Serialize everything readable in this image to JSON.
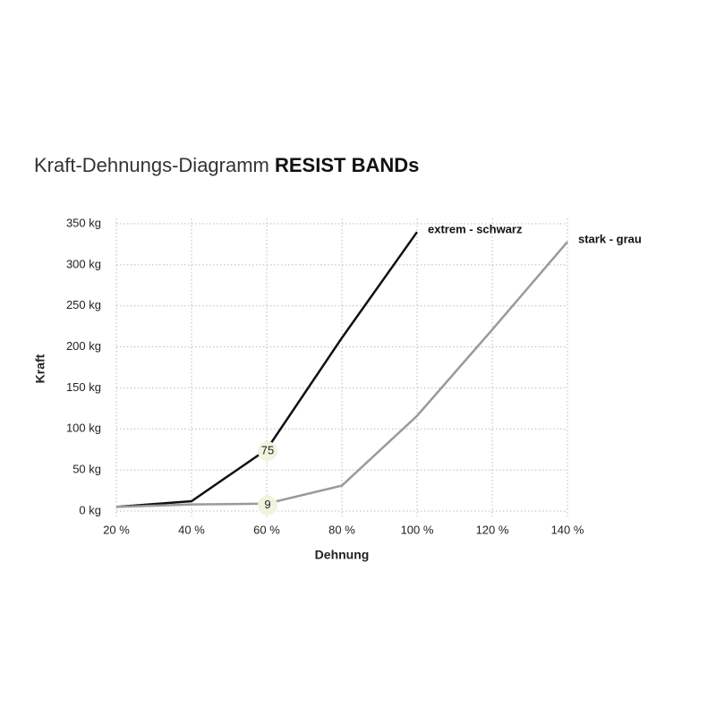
{
  "chart_data": {
    "type": "line",
    "title": "Kraft-Dehnungs-Diagramm",
    "title_bold": "RESIST BANDs",
    "x_label": "Dehnung",
    "y_label": "Kraft",
    "x": [
      20,
      40,
      60,
      80,
      100,
      120,
      140
    ],
    "series": [
      {
        "name": "extrem - schwarz",
        "color": "#111111",
        "values": [
          5,
          12,
          75,
          211,
          340,
          null,
          null
        ],
        "label_index": 2
      },
      {
        "name": "stark - grau",
        "color": "#9a9a9a",
        "values": [
          5,
          8,
          9,
          31,
          116,
          221,
          328
        ],
        "label_index": 2
      }
    ],
    "xlim": [
      20,
      140
    ],
    "xticks": [
      {
        "value": 20,
        "label": "20 %"
      },
      {
        "value": 40,
        "label": "40 %"
      },
      {
        "value": 60,
        "label": "60 %"
      },
      {
        "value": 80,
        "label": "80 %"
      },
      {
        "value": 100,
        "label": "100 %"
      },
      {
        "value": 120,
        "label": "120 %"
      },
      {
        "value": 140,
        "label": "140 %"
      }
    ],
    "ylim": [
      0,
      350
    ],
    "yticks": [
      {
        "value": 0,
        "label": "0 kg"
      },
      {
        "value": 50,
        "label": "50 kg"
      },
      {
        "value": 100,
        "label": "100 kg"
      },
      {
        "value": 150,
        "label": "150 kg"
      },
      {
        "value": 200,
        "label": "200 kg"
      },
      {
        "value": 250,
        "label": "250 kg"
      },
      {
        "value": 300,
        "label": "300 kg"
      },
      {
        "value": 350,
        "label": "350 kg"
      }
    ],
    "grid": true
  }
}
